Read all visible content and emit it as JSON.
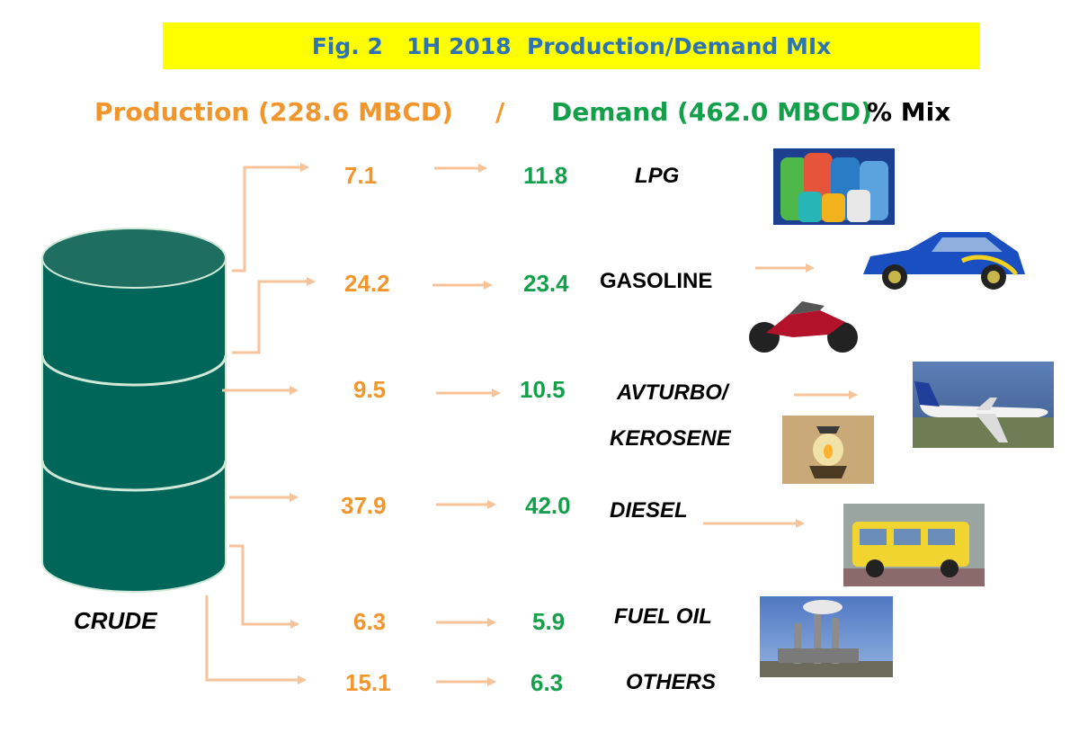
{
  "title": "Fig. 2   1H 2018  Production/Demand MIx",
  "header": {
    "production": "Production (228.6 MBCD)",
    "slash": "/",
    "demand": "Demand (462.0 MBCD)",
    "mix": "% Mix"
  },
  "source_label": "CRUDE",
  "products": [
    {
      "name": "LPG",
      "production": "7.1",
      "demand": "11.8"
    },
    {
      "name": "GASOLINE",
      "production": "24.2",
      "demand": "23.4"
    },
    {
      "name": "AVTURBO/",
      "name2": "KEROSENE",
      "production": "9.5",
      "demand": "10.5"
    },
    {
      "name": "DIESEL",
      "production": "37.9",
      "demand": "42.0"
    },
    {
      "name": "FUEL OIL",
      "production": "6.3",
      "demand": "5.9"
    },
    {
      "name": "OTHERS",
      "production": "15.1",
      "demand": "6.3"
    }
  ],
  "colors": {
    "production": "#f0962c",
    "demand": "#14a04b",
    "arrow": "#f7c39a",
    "barrel": "#00665a",
    "title_bg": "#ffff00",
    "title_text": "#2e74b5"
  },
  "images": [
    "lpg-cylinders-image",
    "rally-car-image",
    "motorcycle-image",
    "airplane-image",
    "kerosene-lantern-image",
    "jeepney-image",
    "power-plant-image"
  ]
}
